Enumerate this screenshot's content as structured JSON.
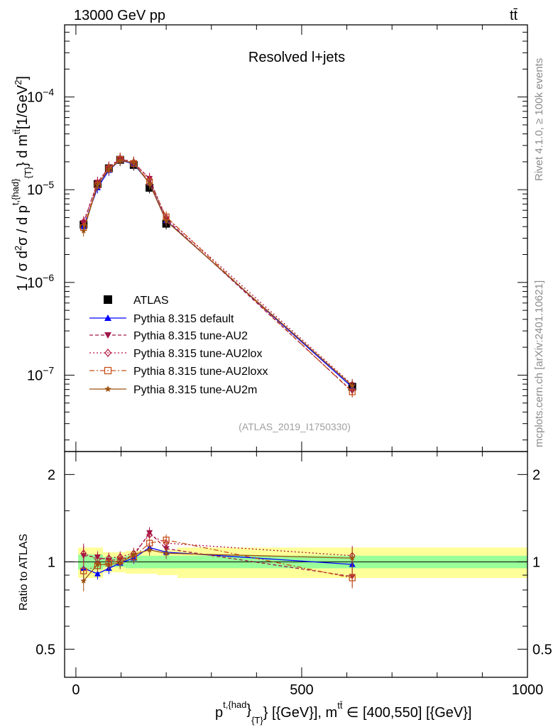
{
  "header": {
    "left": "13000 GeV pp",
    "right": "tt̄",
    "subtitle": "Resolved l+jets",
    "watermark": "(ATLAS_2019_I1750330)",
    "rivet": "Rivet 4.1.0, ≥ 100k events",
    "mcplots": "mcplots.cern.ch [arXiv:2401.10621]"
  },
  "axes": {
    "ylabel_main": "1 / σ d²σ / d p^{t,{had}}_{T} d m^{tt̄} [1/GeV²]",
    "ylabel_main_parts": {
      "pre": "1 / σ d",
      "sq": "2",
      "mid": "σ / d p",
      "sup1": "t,{had}",
      "sub1": "{T}",
      "post": "} d m",
      "sup2": "tt̄",
      "unit": "[1/GeV",
      "unitsup": "2",
      "close": "]"
    },
    "ylabel_ratio": "Ratio to ATLAS",
    "xlabel_parts": {
      "p": "p",
      "sup": "t,{had",
      "brace": "}",
      "sub": "{T}",
      "rest": "} [{GeV}], m",
      "msup": "tt̄",
      "range": " ∈ [400,550] [{GeV}]"
    },
    "main_ticks": [
      {
        "label": "10",
        "exp": "−4",
        "value": 0.0001
      },
      {
        "label": "10",
        "exp": "−5",
        "value": 1e-05
      },
      {
        "label": "10",
        "exp": "−6",
        "value": 1e-06
      },
      {
        "label": "10",
        "exp": "−7",
        "value": 1e-07
      }
    ],
    "ratio_ticks": [
      "0.5",
      "1",
      "2"
    ],
    "x_ticks": [
      "0",
      "500",
      "1000"
    ]
  },
  "legend": [
    {
      "name": "ATLAS",
      "color": "#000000",
      "marker": "square-filled",
      "dash": ""
    },
    {
      "name": "Pythia 8.315 default",
      "color": "#0000ff",
      "marker": "triangle-up",
      "dash": ""
    },
    {
      "name": "Pythia 8.315 tune-AU2",
      "color": "#a0174a",
      "marker": "triangle-down",
      "dash": "5,3"
    },
    {
      "name": "Pythia 8.315 tune-AU2lox",
      "color": "#b0123f",
      "marker": "diamond-open",
      "dash": "2,3"
    },
    {
      "name": "Pythia 8.315 tune-AU2loxx",
      "color": "#c8501a",
      "marker": "square-open",
      "dash": "7,3,2,3"
    },
    {
      "name": "Pythia 8.315 tune-AU2m",
      "color": "#9c5210",
      "marker": "star",
      "dash": ""
    }
  ],
  "chart_data": {
    "type": "line",
    "title": "Resolved l+jets",
    "xlabel": "p_T^{t,had} [GeV], m^{tt} in [400,550] [GeV]",
    "ylabel": "1/sigma d2sigma / dpT dm [1/GeV2]",
    "xlim": [
      -25,
      1000
    ],
    "ylim": [
      1.5e-08,
      0.0006
    ],
    "yscale": "log",
    "ratio_ylim": [
      0.4,
      2.4
    ],
    "x": [
      17,
      48,
      73,
      98,
      128,
      163,
      200,
      612
    ],
    "series": [
      {
        "name": "ATLAS",
        "values": [
          4.2e-06,
          1.15e-05,
          1.7e-05,
          2.1e-05,
          1.85e-05,
          1.05e-05,
          4.3e-06,
          7.5e-08
        ],
        "band_edges": [
          5,
          30,
          60,
          85,
          110,
          150,
          180,
          225,
          1000
        ],
        "band_stat": [
          0.06,
          0.06,
          0.04,
          0.04,
          0.05,
          0.05,
          0.05,
          0.05
        ],
        "band_total": [
          0.12,
          0.12,
          0.08,
          0.08,
          0.09,
          0.09,
          0.1,
          0.12
        ]
      },
      {
        "name": "Pythia 8.315 default",
        "values": [
          4e-06,
          1.05e-05,
          1.62e-05,
          2.08e-05,
          1.9e-05,
          1.18e-05,
          4.65e-06,
          7.4e-08
        ],
        "ratio": [
          0.95,
          0.91,
          0.95,
          0.99,
          1.03,
          1.12,
          1.08,
          0.98
        ]
      },
      {
        "name": "Pythia 8.315 tune-AU2",
        "values": [
          4.4e-06,
          1.2e-05,
          1.72e-05,
          2.15e-05,
          1.95e-05,
          1.32e-05,
          4.8e-06,
          6.7e-08
        ],
        "ratio": [
          1.05,
          1.04,
          1.01,
          1.02,
          1.05,
          1.26,
          1.11,
          0.89
        ]
      },
      {
        "name": "Pythia 8.315 tune-AU2lox",
        "values": [
          4.5e-06,
          1.18e-05,
          1.75e-05,
          2.18e-05,
          1.98e-05,
          1.3e-05,
          5e-06,
          7.9e-08
        ],
        "ratio": [
          1.07,
          1.02,
          1.03,
          1.04,
          1.07,
          1.24,
          1.16,
          1.05
        ]
      },
      {
        "name": "Pythia 8.315 tune-AU2loxx",
        "values": [
          3.9e-06,
          1.12e-05,
          1.68e-05,
          2.12e-05,
          1.92e-05,
          1.22e-05,
          5.1e-06,
          6.6e-08
        ],
        "ratio": [
          0.93,
          0.97,
          0.99,
          1.01,
          1.04,
          1.16,
          1.19,
          0.88
        ]
      },
      {
        "name": "Pythia 8.315 tune-AU2m",
        "values": [
          3.6e-06,
          1.13e-05,
          1.66e-05,
          2.07e-05,
          1.96e-05,
          1.16e-05,
          4.6e-06,
          7.7e-08
        ],
        "ratio": [
          0.86,
          0.98,
          0.98,
          0.99,
          1.06,
          1.1,
          1.07,
          1.03
        ]
      }
    ]
  }
}
